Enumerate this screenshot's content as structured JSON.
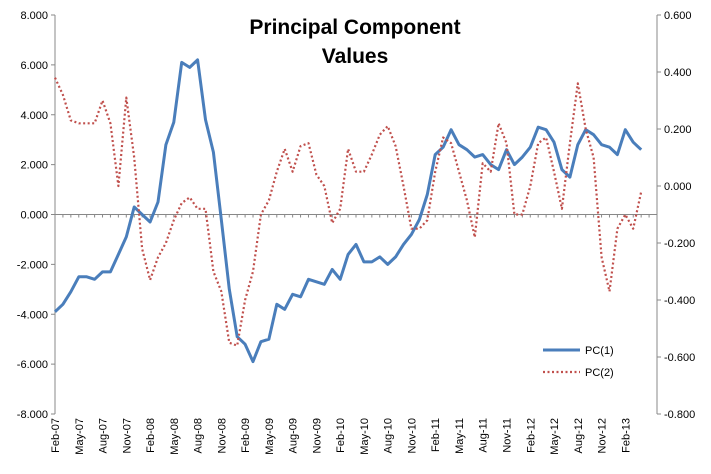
{
  "chart_data": {
    "type": "line",
    "title_lines": [
      "Principal Component",
      "Values"
    ],
    "xlabel": "",
    "ylabel": "",
    "ylim": [
      -8,
      8
    ],
    "y2lim": [
      -0.8,
      0.6
    ],
    "y_ticks": [
      "-8.000",
      "-6.000",
      "-4.000",
      "-2.000",
      "0.000",
      "2.000",
      "4.000",
      "6.000",
      "8.000"
    ],
    "y2_ticks": [
      "-0.800",
      "-0.600",
      "-0.400",
      "-0.200",
      "0.000",
      "0.200",
      "0.400",
      "0.600"
    ],
    "x_tick_labels": [
      "Feb-07",
      "May-07",
      "Aug-07",
      "Nov-07",
      "Feb-08",
      "May-08",
      "Aug-08",
      "Nov-08",
      "Feb-09",
      "May-09",
      "Aug-09",
      "Nov-09",
      "Feb-10",
      "May-10",
      "Aug-10",
      "Nov-10",
      "Feb-11",
      "May-11",
      "Aug-11",
      "Nov-11",
      "Feb-12",
      "May-12",
      "Aug-12",
      "Nov-12",
      "Feb-13"
    ],
    "x_domain": [
      "Feb-07",
      "Jun-13"
    ],
    "legend_position": "bottom-right",
    "grid": false,
    "series": [
      {
        "name": "PC(1)",
        "axis": "left",
        "color": "#4a7ebb",
        "style": "solid",
        "points": [
          [
            "2007-02",
            -3.9
          ],
          [
            "2007-03",
            -3.6
          ],
          [
            "2007-04",
            -3.1
          ],
          [
            "2007-05",
            -2.5
          ],
          [
            "2007-06",
            -2.5
          ],
          [
            "2007-07",
            -2.6
          ],
          [
            "2007-08",
            -2.3
          ],
          [
            "2007-09",
            -2.3
          ],
          [
            "2007-10",
            -1.6
          ],
          [
            "2007-11",
            -0.9
          ],
          [
            "2007-12",
            0.3
          ],
          [
            "2008-01",
            0.0
          ],
          [
            "2008-02",
            -0.3
          ],
          [
            "2008-03",
            0.5
          ],
          [
            "2008-04",
            2.8
          ],
          [
            "2008-05",
            3.7
          ],
          [
            "2008-06",
            6.1
          ],
          [
            "2008-07",
            5.9
          ],
          [
            "2008-08",
            6.2
          ],
          [
            "2008-09",
            3.8
          ],
          [
            "2008-10",
            2.5
          ],
          [
            "2008-11",
            -0.2
          ],
          [
            "2008-12",
            -3.0
          ],
          [
            "2009-01",
            -4.9
          ],
          [
            "2009-02",
            -5.2
          ],
          [
            "2009-03",
            -5.9
          ],
          [
            "2009-04",
            -5.1
          ],
          [
            "2009-05",
            -5.0
          ],
          [
            "2009-06",
            -3.6
          ],
          [
            "2009-07",
            -3.8
          ],
          [
            "2009-08",
            -3.2
          ],
          [
            "2009-09",
            -3.3
          ],
          [
            "2009-10",
            -2.6
          ],
          [
            "2009-11",
            -2.7
          ],
          [
            "2009-12",
            -2.8
          ],
          [
            "2010-01",
            -2.2
          ],
          [
            "2010-02",
            -2.6
          ],
          [
            "2010-03",
            -1.6
          ],
          [
            "2010-04",
            -1.2
          ],
          [
            "2010-05",
            -1.9
          ],
          [
            "2010-06",
            -1.9
          ],
          [
            "2010-07",
            -1.7
          ],
          [
            "2010-08",
            -2.0
          ],
          [
            "2010-09",
            -1.7
          ],
          [
            "2010-10",
            -1.2
          ],
          [
            "2010-11",
            -0.8
          ],
          [
            "2010-12",
            -0.2
          ],
          [
            "2011-01",
            0.8
          ],
          [
            "2011-02",
            2.4
          ],
          [
            "2011-03",
            2.7
          ],
          [
            "2011-04",
            3.4
          ],
          [
            "2011-05",
            2.8
          ],
          [
            "2011-06",
            2.6
          ],
          [
            "2011-07",
            2.3
          ],
          [
            "2011-08",
            2.4
          ],
          [
            "2011-09",
            2.0
          ],
          [
            "2011-10",
            1.8
          ],
          [
            "2011-11",
            2.6
          ],
          [
            "2011-12",
            2.0
          ],
          [
            "2012-01",
            2.3
          ],
          [
            "2012-02",
            2.7
          ],
          [
            "2012-03",
            3.5
          ],
          [
            "2012-04",
            3.4
          ],
          [
            "2012-05",
            2.9
          ],
          [
            "2012-06",
            1.8
          ],
          [
            "2012-07",
            1.5
          ],
          [
            "2012-08",
            2.8
          ],
          [
            "2012-09",
            3.4
          ],
          [
            "2012-10",
            3.2
          ],
          [
            "2012-11",
            2.8
          ],
          [
            "2012-12",
            2.7
          ],
          [
            "2013-01",
            2.4
          ],
          [
            "2013-02",
            3.4
          ],
          [
            "2013-03",
            2.9
          ],
          [
            "2013-04",
            2.6
          ]
        ]
      },
      {
        "name": "PC(2)",
        "axis": "right",
        "color": "#c0504d",
        "style": "dotted",
        "points": [
          [
            "2007-02",
            0.38
          ],
          [
            "2007-03",
            0.32
          ],
          [
            "2007-04",
            0.23
          ],
          [
            "2007-05",
            0.22
          ],
          [
            "2007-06",
            0.22
          ],
          [
            "2007-07",
            0.22
          ],
          [
            "2007-08",
            0.3
          ],
          [
            "2007-09",
            0.22
          ],
          [
            "2007-10",
            0.0
          ],
          [
            "2007-11",
            0.31
          ],
          [
            "2007-12",
            0.1
          ],
          [
            "2008-01",
            -0.22
          ],
          [
            "2008-02",
            -0.33
          ],
          [
            "2008-03",
            -0.25
          ],
          [
            "2008-04",
            -0.2
          ],
          [
            "2008-05",
            -0.12
          ],
          [
            "2008-06",
            -0.06
          ],
          [
            "2008-07",
            -0.04
          ],
          [
            "2008-08",
            -0.08
          ],
          [
            "2008-09",
            -0.08
          ],
          [
            "2008-10",
            -0.3
          ],
          [
            "2008-11",
            -0.37
          ],
          [
            "2008-12",
            -0.55
          ],
          [
            "2009-01",
            -0.56
          ],
          [
            "2009-02",
            -0.4
          ],
          [
            "2009-03",
            -0.3
          ],
          [
            "2009-04",
            -0.1
          ],
          [
            "2009-05",
            -0.05
          ],
          [
            "2009-06",
            0.05
          ],
          [
            "2009-07",
            0.13
          ],
          [
            "2009-08",
            0.05
          ],
          [
            "2009-09",
            0.14
          ],
          [
            "2009-10",
            0.15
          ],
          [
            "2009-11",
            0.04
          ],
          [
            "2009-12",
            0.0
          ],
          [
            "2010-01",
            -0.13
          ],
          [
            "2010-02",
            -0.08
          ],
          [
            "2010-03",
            0.13
          ],
          [
            "2010-04",
            0.05
          ],
          [
            "2010-05",
            0.05
          ],
          [
            "2010-06",
            0.11
          ],
          [
            "2010-07",
            0.18
          ],
          [
            "2010-08",
            0.21
          ],
          [
            "2010-09",
            0.14
          ],
          [
            "2010-10",
            0.0
          ],
          [
            "2010-11",
            -0.15
          ],
          [
            "2010-12",
            -0.15
          ],
          [
            "2011-01",
            -0.12
          ],
          [
            "2011-02",
            0.05
          ],
          [
            "2011-03",
            0.17
          ],
          [
            "2011-04",
            0.15
          ],
          [
            "2011-05",
            0.05
          ],
          [
            "2011-06",
            -0.05
          ],
          [
            "2011-07",
            -0.18
          ],
          [
            "2011-08",
            0.08
          ],
          [
            "2011-09",
            0.05
          ],
          [
            "2011-10",
            0.22
          ],
          [
            "2011-11",
            0.15
          ],
          [
            "2011-12",
            -0.1
          ],
          [
            "2012-01",
            -0.1
          ],
          [
            "2012-02",
            0.0
          ],
          [
            "2012-03",
            0.15
          ],
          [
            "2012-04",
            0.17
          ],
          [
            "2012-05",
            0.05
          ],
          [
            "2012-06",
            -0.08
          ],
          [
            "2012-07",
            0.15
          ],
          [
            "2012-08",
            0.36
          ],
          [
            "2012-09",
            0.2
          ],
          [
            "2012-10",
            0.1
          ],
          [
            "2012-11",
            -0.25
          ],
          [
            "2012-12",
            -0.37
          ],
          [
            "2013-01",
            -0.15
          ],
          [
            "2013-02",
            -0.1
          ],
          [
            "2013-03",
            -0.15
          ],
          [
            "2013-04",
            -0.02
          ]
        ]
      }
    ]
  }
}
